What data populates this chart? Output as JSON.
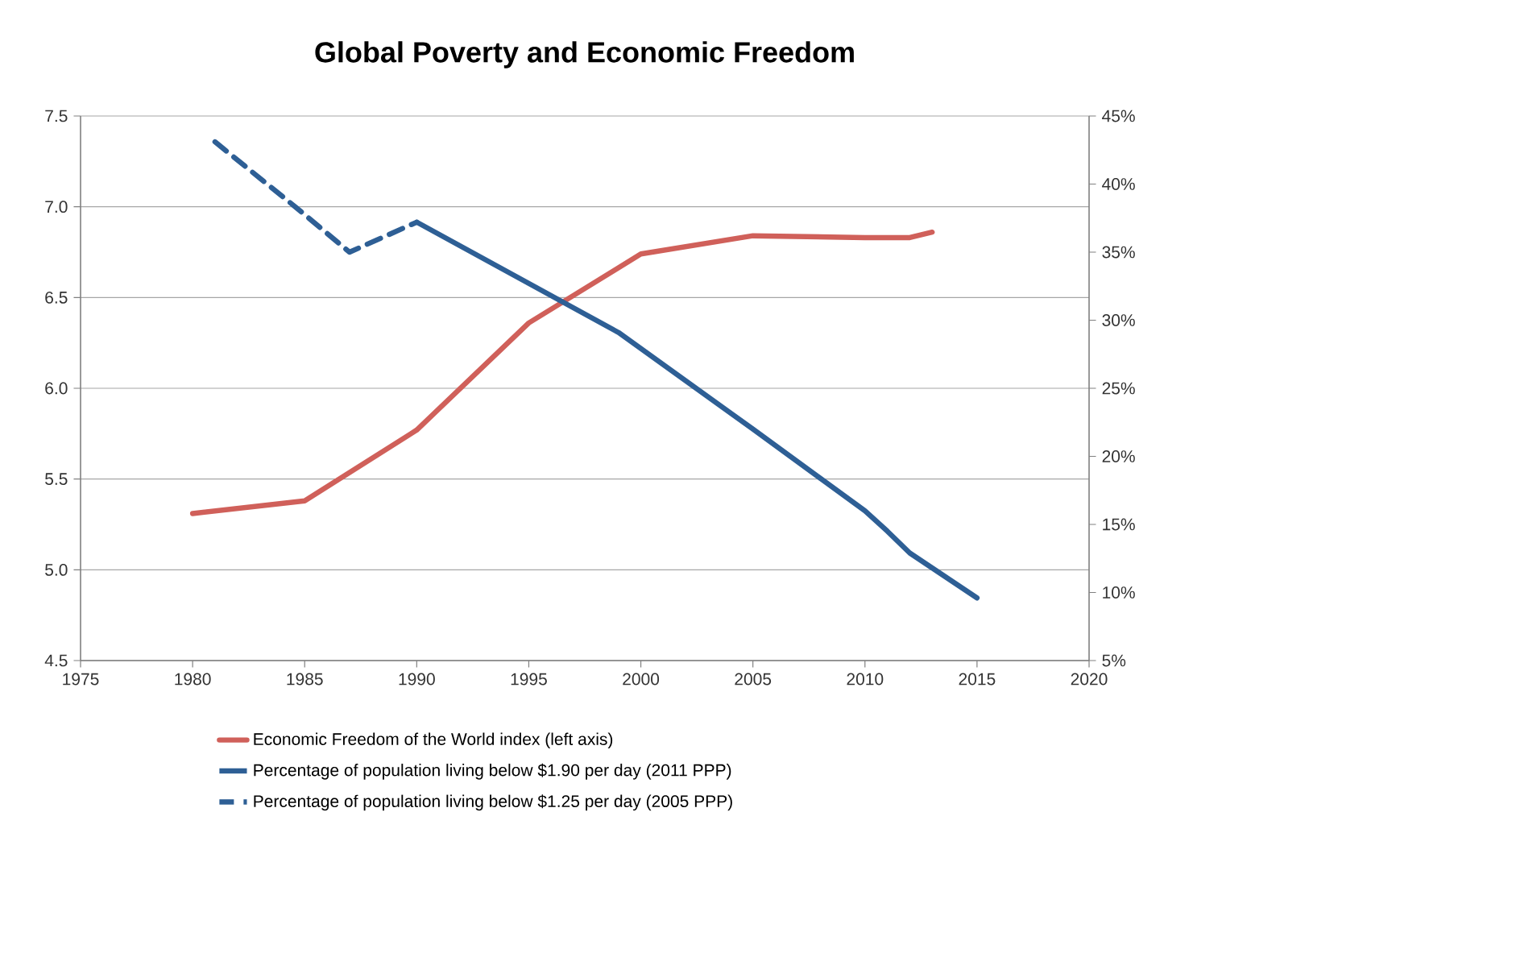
{
  "chart_data": {
    "type": "line",
    "title": "Global Poverty and Economic Freedom",
    "xlim": [
      1975,
      2020
    ],
    "xticks": [
      1975,
      1980,
      1985,
      1990,
      1995,
      2000,
      2005,
      2010,
      2015,
      2020
    ],
    "ylim": [
      4.5,
      7.5
    ],
    "yticks": [
      4.5,
      {
        "value": 5,
        "label": "5.0"
      },
      5.5,
      {
        "value": 6,
        "label": "6.0"
      },
      6.5,
      {
        "value": 7,
        "label": "7.0"
      },
      7.5
    ],
    "y2lim": [
      5,
      45
    ],
    "y2ticks": [
      {
        "value": 5,
        "label": "5%"
      },
      {
        "value": 10,
        "label": "10%"
      },
      {
        "value": 15,
        "label": "15%"
      },
      {
        "value": 20,
        "label": "20%"
      },
      {
        "value": 25,
        "label": "25%"
      },
      {
        "value": 30,
        "label": "30%"
      },
      {
        "value": 35,
        "label": "35%"
      },
      {
        "value": 40,
        "label": "40%"
      },
      {
        "value": 45,
        "label": "45%"
      }
    ],
    "grid": "y",
    "legend": "bottom",
    "series": [
      {
        "name": "Economic Freedom of the World index (left axis)",
        "color": "#d0605a",
        "line_style": "solid",
        "x": [
          1980,
          1985,
          1990,
          1995,
          2000,
          2005,
          2010,
          2012,
          2013
        ],
        "values": [
          5.31,
          5.38,
          5.77,
          6.36,
          6.74,
          6.84,
          6.83,
          6.83,
          6.86
        ]
      },
      {
        "name": "Percentage of population living below $1.90 per day (2011 PPP)",
        "color": "#2e5f95",
        "line_style": "solid",
        "axis": "y2",
        "x": [
          1990,
          1999,
          2005,
          2010,
          2011,
          2012,
          2015
        ],
        "values": [
          37.2,
          29.1,
          22.0,
          16.0,
          14.5,
          12.9,
          9.6
        ]
      },
      {
        "name": "Percentage of population living below $1.25 per day (2005 PPP)",
        "color": "#2e5f95",
        "line_style": "dashed",
        "axis": "y2",
        "x": [
          1981,
          1984.6,
          1987,
          1990
        ],
        "values": [
          43.1,
          38.3,
          35.0,
          37.2
        ]
      }
    ]
  }
}
